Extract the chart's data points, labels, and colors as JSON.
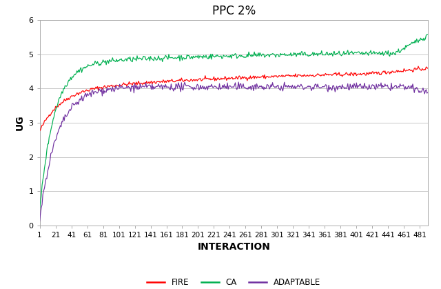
{
  "title": "PPC 2%",
  "xlabel": "INTERACTION",
  "ylabel": "UG",
  "xlim": [
    1,
    491
  ],
  "ylim": [
    0,
    6
  ],
  "yticks": [
    0,
    1,
    2,
    3,
    4,
    5,
    6
  ],
  "xticks": [
    1,
    21,
    41,
    61,
    81,
    101,
    121,
    141,
    161,
    181,
    201,
    221,
    241,
    261,
    281,
    301,
    321,
    341,
    361,
    381,
    401,
    421,
    441,
    461,
    481
  ],
  "n_points": 491,
  "fire_color": "#FF0000",
  "ca_color": "#00B050",
  "adaptable_color": "#7030A0",
  "legend_labels": [
    "FIRE",
    "CA",
    "ADAPTABLE"
  ],
  "title_fontsize": 12,
  "axis_label_fontsize": 10,
  "tick_fontsize": 7.5
}
